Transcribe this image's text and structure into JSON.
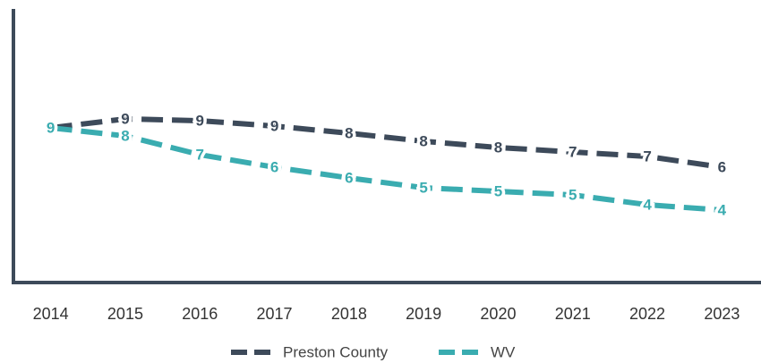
{
  "chart_data": {
    "type": "line",
    "categories": [
      "2014",
      "2015",
      "2016",
      "2017",
      "2018",
      "2019",
      "2020",
      "2021",
      "2022",
      "2023"
    ],
    "ylim": [
      0,
      15
    ],
    "series": [
      {
        "name": "Preston County",
        "color": "#3d4a5a",
        "values": [
          8.65,
          9.15,
          9.05,
          8.75,
          8.35,
          7.9,
          7.55,
          7.3,
          7.05,
          6.45
        ],
        "value_labels": [
          "9",
          "9",
          "9",
          "9",
          "8",
          "8",
          "8",
          "7",
          "7",
          "6"
        ]
      },
      {
        "name": "WV",
        "color": "#3aacb0",
        "values": [
          8.65,
          8.2,
          7.15,
          6.45,
          5.85,
          5.3,
          5.1,
          4.9,
          4.35,
          4.05
        ],
        "value_labels": [
          "9",
          "8",
          "7",
          "6",
          "6",
          "5",
          "5",
          "5",
          "4",
          "4"
        ]
      }
    ]
  }
}
